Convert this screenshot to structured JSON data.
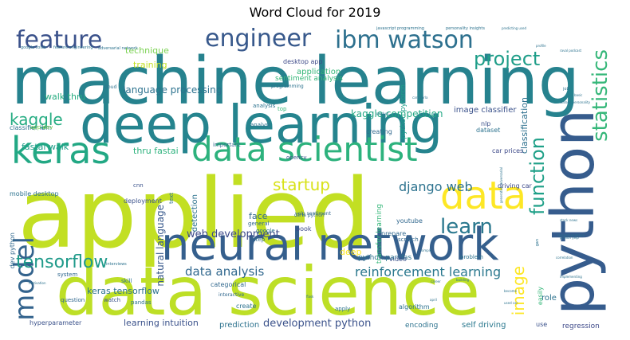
{
  "title": "Word Cloud for 2019",
  "chart_data": {
    "type": "wordcloud",
    "title": "Word Cloud for 2019",
    "words": [
      {
        "text": "applied",
        "weight": 100,
        "color": "#c2df23",
        "orientation": "horizontal"
      },
      {
        "text": "machine learning",
        "weight": 92,
        "color": "#26828e",
        "orientation": "horizontal"
      },
      {
        "text": "data science",
        "weight": 90,
        "color": "#bddf26",
        "orientation": "horizontal"
      },
      {
        "text": "deep learning",
        "weight": 80,
        "color": "#25848e",
        "orientation": "horizontal"
      },
      {
        "text": "neural network",
        "weight": 75,
        "color": "#355f8d",
        "orientation": "horizontal"
      },
      {
        "text": "python",
        "weight": 74,
        "color": "#365c8d",
        "orientation": "vertical"
      },
      {
        "text": "data scientist",
        "weight": 50,
        "color": "#2db27d",
        "orientation": "horizontal"
      },
      {
        "text": "keras",
        "weight": 50,
        "color": "#22a884",
        "orientation": "horizontal"
      },
      {
        "text": "data",
        "weight": 48,
        "color": "#fde725",
        "orientation": "horizontal"
      },
      {
        "text": "model",
        "weight": 38,
        "color": "#33638d",
        "orientation": "vertical"
      },
      {
        "text": "feature",
        "weight": 32,
        "color": "#3b528b",
        "orientation": "horizontal"
      },
      {
        "text": "engineer",
        "weight": 32,
        "color": "#38598c",
        "orientation": "horizontal"
      },
      {
        "text": "ibm watson",
        "weight": 32,
        "color": "#2d708e",
        "orientation": "horizontal"
      },
      {
        "text": "project",
        "weight": 28,
        "color": "#1f9e89",
        "orientation": "horizontal"
      },
      {
        "text": "learn",
        "weight": 28,
        "color": "#2a788e",
        "orientation": "horizontal"
      },
      {
        "text": "statistics",
        "weight": 26,
        "color": "#35b779",
        "orientation": "vertical"
      },
      {
        "text": "function",
        "weight": 26,
        "color": "#1fa088",
        "orientation": "vertical"
      },
      {
        "text": "tensorflow",
        "weight": 24,
        "color": "#1f9a8a",
        "orientation": "horizontal"
      },
      {
        "text": "startup",
        "weight": 22,
        "color": "#d8e219",
        "orientation": "horizontal"
      },
      {
        "text": "kaggle",
        "weight": 20,
        "color": "#25ac82",
        "orientation": "horizontal"
      },
      {
        "text": "reinforcement learning",
        "weight": 20,
        "color": "#2a788e",
        "orientation": "horizontal"
      },
      {
        "text": "image",
        "weight": 20,
        "color": "#fde725",
        "orientation": "vertical"
      },
      {
        "text": "django web",
        "weight": 16,
        "color": "#2c728e",
        "orientation": "horizontal"
      },
      {
        "text": "data analysis",
        "weight": 16,
        "color": "#31688e",
        "orientation": "horizontal"
      },
      {
        "text": "web development",
        "weight": 14,
        "color": "#3e4a89",
        "orientation": "horizontal"
      },
      {
        "text": "development python",
        "weight": 14,
        "color": "#3b528b",
        "orientation": "horizontal"
      },
      {
        "text": "language processing",
        "weight": 13,
        "color": "#2c728e",
        "orientation": "horizontal"
      },
      {
        "text": "kaggle competition",
        "weight": 12,
        "color": "#22a884",
        "orientation": "horizontal"
      },
      {
        "text": "natural language",
        "weight": 12,
        "color": "#38598c",
        "orientation": "vertical"
      },
      {
        "text": "keras tensorflow",
        "weight": 11,
        "color": "#2c728e",
        "orientation": "horizontal"
      },
      {
        "text": "fastai walk",
        "weight": 11,
        "color": "#1f9e89",
        "orientation": "horizontal"
      },
      {
        "text": "thru fastai",
        "weight": 11,
        "color": "#2db27d",
        "orientation": "horizontal"
      },
      {
        "text": "walk thru",
        "weight": 11,
        "color": "#27ad81",
        "orientation": "horizontal"
      },
      {
        "text": "technique",
        "weight": 11,
        "color": "#7ad151",
        "orientation": "horizontal"
      },
      {
        "text": "training",
        "weight": 11,
        "color": "#c2df23",
        "orientation": "horizontal"
      },
      {
        "text": "application",
        "weight": 10,
        "color": "#35b779",
        "orientation": "horizontal"
      },
      {
        "text": "classification",
        "weight": 11,
        "color": "#2d708e",
        "orientation": "vertical"
      },
      {
        "text": "learning intuition",
        "weight": 11,
        "color": "#3b528b",
        "orientation": "horizontal"
      },
      {
        "text": "prediction",
        "weight": 10,
        "color": "#2c728e",
        "orientation": "horizontal"
      },
      {
        "text": "regression",
        "weight": 10,
        "color": "#3e4a89",
        "orientation": "horizontal"
      },
      {
        "text": "self driving",
        "weight": 10,
        "color": "#2a788e",
        "orientation": "horizontal"
      },
      {
        "text": "encoding",
        "weight": 10,
        "color": "#2c728e",
        "orientation": "horizontal"
      },
      {
        "text": "face",
        "weight": 11,
        "color": "#31688e",
        "orientation": "horizontal"
      },
      {
        "text": "detection",
        "weight": 10,
        "color": "#2c728e",
        "orientation": "vertical"
      },
      {
        "text": "deep",
        "weight": 11,
        "color": "#fde725",
        "orientation": "horizontal"
      },
      {
        "text": "role",
        "weight": 10,
        "color": "#2c728e",
        "orientation": "horizontal"
      },
      {
        "text": "image classifier",
        "weight": 10,
        "color": "#3b528b",
        "orientation": "horizontal"
      },
      {
        "text": "python pytorch",
        "weight": 9,
        "color": "#1f9e89",
        "orientation": "vertical"
      },
      {
        "text": "python pandas",
        "weight": 9,
        "color": "#2c728e",
        "orientation": "horizontal"
      },
      {
        "text": "transfer learning",
        "weight": 9,
        "color": "#35b779",
        "orientation": "vertical"
      },
      {
        "text": "sentiment analysis",
        "weight": 9,
        "color": "#35b779",
        "orientation": "horizontal"
      },
      {
        "text": "desktop app",
        "weight": 8,
        "color": "#3e4a89",
        "orientation": "horizontal"
      },
      {
        "text": "classifier ibm",
        "weight": 8,
        "color": "#2d708e",
        "orientation": "horizontal"
      },
      {
        "text": "mobile desktop",
        "weight": 8,
        "color": "#2c728e",
        "orientation": "horizontal"
      },
      {
        "text": "dev python",
        "weight": 8,
        "color": "#31688e",
        "orientation": "vertical"
      },
      {
        "text": "hyperparameter",
        "weight": 8,
        "color": "#3b528b",
        "orientation": "horizontal"
      },
      {
        "text": "deployment",
        "weight": 8,
        "color": "#3b528b",
        "orientation": "horizontal"
      },
      {
        "text": "driving car",
        "weight": 8,
        "color": "#3e4a89",
        "orientation": "horizontal"
      },
      {
        "text": "car prices",
        "weight": 8,
        "color": "#3e4a89",
        "orientation": "horizontal"
      },
      {
        "text": "dataset",
        "weight": 8,
        "color": "#2c728e",
        "orientation": "horizontal"
      },
      {
        "text": "creating",
        "weight": 8,
        "color": "#31688e",
        "orientation": "horizontal"
      },
      {
        "text": "algorithm",
        "weight": 8,
        "color": "#2c728e",
        "orientation": "horizontal"
      },
      {
        "text": "categorical",
        "weight": 8,
        "color": "#31688e",
        "orientation": "horizontal"
      },
      {
        "text": "create",
        "weight": 8,
        "color": "#2c728e",
        "orientation": "horizontal"
      },
      {
        "text": "youtube",
        "weight": 8,
        "color": "#31688e",
        "orientation": "horizontal"
      },
      {
        "text": "prepare",
        "weight": 8,
        "color": "#31688e",
        "orientation": "horizontal"
      },
      {
        "text": "video",
        "weight": 8,
        "color": "#3b528b",
        "orientation": "horizontal"
      },
      {
        "text": "book",
        "weight": 8,
        "color": "#3e4a89",
        "orientation": "horizontal"
      },
      {
        "text": "nlp",
        "weight": 8,
        "color": "#3b528b",
        "orientation": "horizontal"
      },
      {
        "text": "use",
        "weight": 8,
        "color": "#3b528b",
        "orientation": "horizontal"
      },
      {
        "text": "easily",
        "weight": 8,
        "color": "#35b779",
        "orientation": "vertical"
      },
      {
        "text": "problem",
        "weight": 7,
        "color": "#2c728e",
        "orientation": "horizontal"
      },
      {
        "text": "pandas",
        "weight": 7,
        "color": "#2c728e",
        "orientation": "horizontal"
      },
      {
        "text": "analyst",
        "weight": 7,
        "color": "#2c728e",
        "orientation": "horizontal"
      },
      {
        "text": "important",
        "weight": 7,
        "color": "#31688e",
        "orientation": "horizontal"
      },
      {
        "text": "cnn",
        "weight": 7,
        "color": "#3b528b",
        "orientation": "horizontal"
      },
      {
        "text": "text",
        "weight": 7,
        "color": "#2c728e",
        "orientation": "vertical"
      },
      {
        "text": "top",
        "weight": 7,
        "color": "#35b779",
        "orientation": "horizontal"
      },
      {
        "text": "step",
        "weight": 7,
        "color": "#31688e",
        "orientation": "horizontal"
      },
      {
        "text": "general",
        "weight": 7,
        "color": "#31688e",
        "orientation": "horizontal"
      },
      {
        "text": "google",
        "weight": 7,
        "color": "#2c728e",
        "orientation": "horizontal"
      },
      {
        "text": "app dev",
        "weight": 7,
        "color": "#7ad151",
        "orientation": "horizontal"
      },
      {
        "text": "skill",
        "weight": 7,
        "color": "#2c728e",
        "orientation": "horizontal"
      },
      {
        "text": "system",
        "weight": 7,
        "color": "#31688e",
        "orientation": "horizontal"
      },
      {
        "text": "question",
        "weight": 7,
        "color": "#31688e",
        "orientation": "horizontal"
      },
      {
        "text": "watch",
        "weight": 7,
        "color": "#3b528b",
        "orientation": "horizontal"
      },
      {
        "text": "scratch",
        "weight": 7,
        "color": "#31688e",
        "orientation": "horizontal"
      },
      {
        "text": "apply",
        "weight": 7,
        "color": "#2c728e",
        "orientation": "horizontal"
      },
      {
        "text": "opencv",
        "weight": 7,
        "color": "#3b528b",
        "orientation": "horizontal"
      },
      {
        "text": "yelp sentiment",
        "weight": 6,
        "color": "#31688e",
        "orientation": "horizontal"
      },
      {
        "text": "carla python",
        "weight": 6,
        "color": "#31688e",
        "orientation": "horizontal"
      },
      {
        "text": "analysis",
        "weight": 7,
        "color": "#2c728e",
        "orientation": "horizontal"
      },
      {
        "text": "interactive",
        "weight": 6,
        "color": "#31688e",
        "orientation": "horizontal"
      },
      {
        "text": "cloud",
        "weight": 6,
        "color": "#2c728e",
        "orientation": "horizontal"
      },
      {
        "text": "programming",
        "weight": 6,
        "color": "#2c728e",
        "orientation": "horizontal"
      },
      {
        "text": "adversarial network",
        "weight": 5,
        "color": "#2c728e",
        "orientation": "horizontal"
      },
      {
        "text": "google colab",
        "weight": 5,
        "color": "#2c728e",
        "orientation": "horizontal"
      },
      {
        "text": "feature engineering",
        "weight": 5,
        "color": "#2c728e",
        "orientation": "horizontal"
      },
      {
        "text": "javascript programming",
        "weight": 5,
        "color": "#2c728e",
        "orientation": "horizontal"
      },
      {
        "text": "personality insights",
        "weight": 5,
        "color": "#2c728e",
        "orientation": "horizontal"
      },
      {
        "text": "watson personality",
        "weight": 4,
        "color": "#2c728e",
        "orientation": "horizontal"
      },
      {
        "text": "generative adversarial",
        "weight": 4,
        "color": "#2c728e",
        "orientation": "vertical"
      },
      {
        "text": "stock news",
        "weight": 4,
        "color": "#2c728e",
        "orientation": "horizontal"
      },
      {
        "text": "python yelp",
        "weight": 4,
        "color": "#2c728e",
        "orientation": "horizontal"
      },
      {
        "text": "implementing",
        "weight": 4,
        "color": "#2c728e",
        "orientation": "horizontal"
      },
      {
        "text": "used car",
        "weight": 4,
        "color": "#2c728e",
        "orientation": "horizontal"
      },
      {
        "text": "simple",
        "weight": 4,
        "color": "#2c728e",
        "orientation": "horizontal"
      },
      {
        "text": "interviews",
        "weight": 5,
        "color": "#2c728e",
        "orientation": "horizontal"
      },
      {
        "text": "motivation",
        "weight": 4,
        "color": "#2c728e",
        "orientation": "horizontal"
      },
      {
        "text": "career",
        "weight": 4,
        "color": "#2c728e",
        "orientation": "horizontal"
      },
      {
        "text": "recommendation",
        "weight": 4,
        "color": "#2c728e",
        "orientation": "horizontal"
      },
      {
        "text": "profile",
        "weight": 4,
        "color": "#2c728e",
        "orientation": "horizontal"
      },
      {
        "text": "job",
        "weight": 5,
        "color": "#2c728e",
        "orientation": "horizontal"
      },
      {
        "text": "flask",
        "weight": 4,
        "color": "#2c728e",
        "orientation": "horizontal"
      },
      {
        "text": "basic",
        "weight": 4,
        "color": "#2c728e",
        "orientation": "horizontal"
      },
      {
        "text": "gan",
        "weight": 5,
        "color": "#2c728e",
        "orientation": "vertical"
      },
      {
        "text": "become",
        "weight": 4,
        "color": "#2c728e",
        "orientation": "horizontal"
      },
      {
        "text": "april",
        "weight": 4,
        "color": "#2c728e",
        "orientation": "horizontal"
      },
      {
        "text": "building",
        "weight": 4,
        "color": "#2c728e",
        "orientation": "horizontal"
      },
      {
        "text": "correlation",
        "weight": 4,
        "color": "#2c728e",
        "orientation": "horizontal"
      },
      {
        "text": "product",
        "weight": 4,
        "color": "#2c728e",
        "orientation": "horizontal"
      },
      {
        "text": "cars carla",
        "weight": 4,
        "color": "#2c728e",
        "orientation": "horizontal"
      },
      {
        "text": "predicting used",
        "weight": 4,
        "color": "#2c728e",
        "orientation": "horizontal"
      },
      {
        "text": "raval podcast",
        "weight": 4,
        "color": "#2c728e",
        "orientation": "horizontal"
      }
    ]
  }
}
